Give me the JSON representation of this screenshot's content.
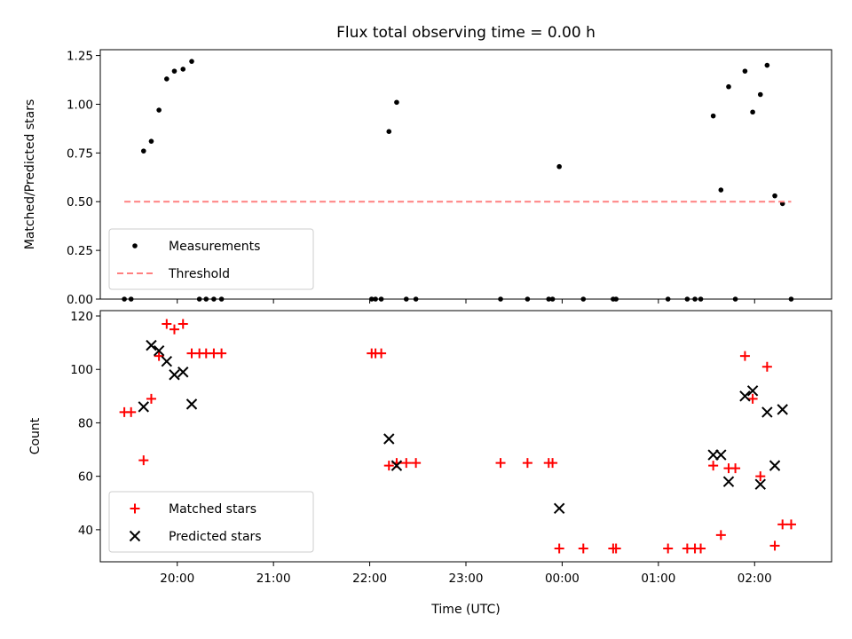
{
  "chart_data": [
    {
      "type": "scatter",
      "title": "Flux total observing time = 0.00 h",
      "xlabel": "",
      "ylabel": "Matched/Predicted stars",
      "ylim": [
        0,
        1.28
      ],
      "xlim": [
        19.2,
        26.8
      ],
      "yticks": [
        "0.00",
        "0.25",
        "0.50",
        "0.75",
        "1.00",
        "1.25"
      ],
      "ytick_values": [
        0,
        0.25,
        0.5,
        0.75,
        1.0,
        1.25
      ],
      "legend_position": "lower-left",
      "series": [
        {
          "name": "Measurements",
          "marker": "dot",
          "color": "#000000",
          "x": [
            19.65,
            19.73,
            19.81,
            19.89,
            19.97,
            20.06,
            20.15,
            22.2,
            22.28,
            23.97,
            25.57,
            25.65,
            25.73,
            25.9,
            25.98,
            26.06,
            26.13,
            26.21,
            26.29,
            19.45,
            19.52,
            20.23,
            20.3,
            20.38,
            20.46,
            22.02,
            22.06,
            22.12,
            22.38,
            22.48,
            23.36,
            23.64,
            23.86,
            23.9,
            24.22,
            24.53,
            24.56,
            25.1,
            25.3,
            25.38,
            25.44,
            25.8,
            26.38
          ],
          "y": [
            0.76,
            0.81,
            0.97,
            1.13,
            1.17,
            1.18,
            1.22,
            0.86,
            1.01,
            0.68,
            0.94,
            0.56,
            1.09,
            1.17,
            0.96,
            1.05,
            1.2,
            0.53,
            0.49,
            0,
            0,
            0,
            0,
            0,
            0,
            0,
            0,
            0,
            0,
            0,
            0,
            0,
            0,
            0,
            0,
            0,
            0,
            0,
            0,
            0,
            0,
            0,
            0
          ]
        },
        {
          "name": "Threshold",
          "style": "dashed-line",
          "color": "#ff8080",
          "x": [
            19.45,
            26.38
          ],
          "y": [
            0.5,
            0.5
          ]
        }
      ]
    },
    {
      "type": "scatter",
      "title": "",
      "xlabel": "Time (UTC)",
      "ylabel": "Count",
      "ylim": [
        28,
        122
      ],
      "xlim": [
        19.2,
        26.8
      ],
      "yticks": [
        "40",
        "60",
        "80",
        "100",
        "120"
      ],
      "ytick_values": [
        40,
        60,
        80,
        100,
        120
      ],
      "xticks": [
        "20:00",
        "21:00",
        "22:00",
        "23:00",
        "00:00",
        "01:00",
        "02:00"
      ],
      "xtick_values": [
        20,
        21,
        22,
        23,
        24,
        25,
        26
      ],
      "legend_position": "lower-left",
      "series": [
        {
          "name": "Matched stars",
          "marker": "plus",
          "color": "#ff0000",
          "x": [
            19.45,
            19.52,
            19.65,
            19.73,
            19.81,
            19.89,
            19.97,
            20.06,
            20.15,
            20.23,
            20.3,
            20.38,
            20.46,
            22.02,
            22.06,
            22.12,
            22.2,
            22.28,
            22.38,
            22.48,
            23.36,
            23.64,
            23.86,
            23.9,
            23.97,
            24.22,
            24.53,
            24.56,
            25.1,
            25.3,
            25.38,
            25.44,
            25.57,
            25.65,
            25.73,
            25.8,
            25.9,
            25.98,
            26.06,
            26.13,
            26.21,
            26.29,
            26.38
          ],
          "y": [
            84,
            84,
            66,
            89,
            105,
            117,
            115,
            117,
            106,
            106,
            106,
            106,
            106,
            106,
            106,
            106,
            64,
            65,
            65,
            65,
            65,
            65,
            65,
            65,
            33,
            33,
            33,
            33,
            33,
            33,
            33,
            33,
            64,
            38,
            63,
            63,
            105,
            89,
            60,
            101,
            34,
            42,
            42
          ]
        },
        {
          "name": "Predicted stars",
          "marker": "x",
          "color": "#000000",
          "x": [
            19.65,
            19.73,
            19.81,
            19.89,
            19.97,
            20.06,
            20.15,
            22.2,
            22.28,
            23.97,
            25.57,
            25.65,
            25.73,
            25.9,
            25.98,
            26.06,
            26.13,
            26.21,
            26.29
          ],
          "y": [
            86,
            109,
            107,
            103,
            98,
            99,
            87,
            74,
            64,
            48,
            68,
            68,
            58,
            90,
            92,
            57,
            84,
            64,
            85
          ]
        }
      ]
    }
  ]
}
